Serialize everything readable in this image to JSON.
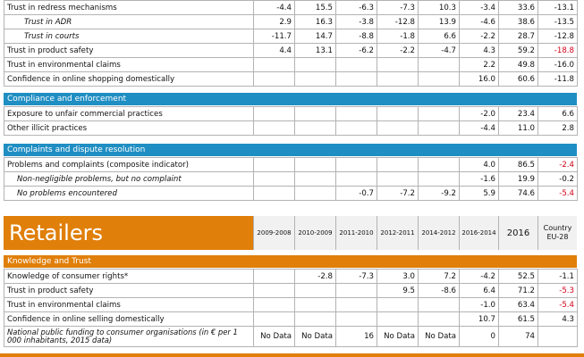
{
  "top_rows": [
    {
      "label": "Trust in redress mechanisms",
      "style": "plain",
      "v": [
        "-4.4",
        "15.5",
        "-6.3",
        "-7.3",
        "10.3",
        "-3.4",
        "33.6",
        "-13.1"
      ],
      "neg_last": false
    },
    {
      "label": "Trust in ADR",
      "style": "ind",
      "v": [
        "2.9",
        "16.3",
        "-3.8",
        "-12.8",
        "13.9",
        "-4.6",
        "38.6",
        "-13.5"
      ],
      "neg_last": false
    },
    {
      "label": "Trust in courts",
      "style": "ind",
      "v": [
        "-11.7",
        "14.7",
        "-8.8",
        "-1.8",
        "6.6",
        "-2.2",
        "28.7",
        "-12.8"
      ],
      "neg_last": false
    },
    {
      "label": "Trust in product safety",
      "style": "plain",
      "v": [
        "4.4",
        "13.1",
        "-6.2",
        "-2.2",
        "-4.7",
        "4.3",
        "59.2",
        "-18.8"
      ],
      "neg_last": true
    },
    {
      "label": "Trust in environmental claims",
      "style": "plain",
      "v": [
        "",
        "",
        "",
        "",
        "",
        "2.2",
        "49.8",
        "-16.0"
      ],
      "neg_last": false
    },
    {
      "label": "Confidence in online shopping domestically",
      "style": "plain",
      "v": [
        "",
        "",
        "",
        "",
        "",
        "16.0",
        "60.6",
        "-11.8"
      ],
      "neg_last": false
    }
  ],
  "compliance": {
    "title": "Compliance and enforcement",
    "rows": [
      {
        "label": "Exposure to unfair commercial practices",
        "style": "plain",
        "v": [
          "",
          "",
          "",
          "",
          "",
          "-2.0",
          "23.4",
          "6.6"
        ],
        "neg_last": false
      },
      {
        "label": "Other illicit practices",
        "style": "plain",
        "v": [
          "",
          "",
          "",
          "",
          "",
          "-4.4",
          "11.0",
          "2.8"
        ],
        "neg_last": false
      }
    ]
  },
  "complaints": {
    "title": "Complaints and dispute resolution",
    "rows": [
      {
        "label": "Problems and complaints (composite indicator)",
        "style": "plain",
        "v": [
          "",
          "",
          "",
          "",
          "",
          "4.0",
          "86.5",
          "-2.4"
        ],
        "neg_last": true
      },
      {
        "label": "Non-negligible problems, but no complaint",
        "style": "ital",
        "v": [
          "",
          "",
          "",
          "",
          "",
          "-1.6",
          "19.9",
          "-0.2"
        ],
        "neg_last": false
      },
      {
        "label": "No problems encountered",
        "style": "ital",
        "v": [
          "",
          "",
          "-0.7",
          "-7.2",
          "-9.2",
          "5.9",
          "74.6",
          "-5.4"
        ],
        "neg_last": true
      }
    ]
  },
  "retailers": {
    "title": "Retailers",
    "headers": [
      "2009-2008",
      "2010-2009",
      "2011-2010",
      "2012-2011",
      "2014-2012",
      "2016-2014",
      "2016",
      "Country EU-28"
    ]
  },
  "knowledge": {
    "title": "Knowledge and Trust",
    "rows": [
      {
        "label": "Knowledge of consumer rights*",
        "style": "plain",
        "v": [
          "",
          "-2.8",
          "-7.3",
          "3.0",
          "7.2",
          "-4.2",
          "52.5",
          "-1.1"
        ],
        "neg_last": false
      },
      {
        "label": "Trust in product safety",
        "style": "plain",
        "v": [
          "",
          "",
          "",
          "9.5",
          "-8.6",
          "6.4",
          "71.2",
          "-5.3"
        ],
        "neg_last": true
      },
      {
        "label": "Trust in environmental claims",
        "style": "plain",
        "v": [
          "",
          "",
          "",
          "",
          "",
          "-1.0",
          "63.4",
          "-5.4"
        ],
        "neg_last": true
      },
      {
        "label": "Confidence in online selling domestically",
        "style": "plain",
        "v": [
          "",
          "",
          "",
          "",
          "",
          "10.7",
          "61.5",
          "4.3"
        ],
        "neg_last": false
      }
    ],
    "funding": {
      "label": "National public funding to consumer organisations (in € per 1 000 inhabitants, 2015 data)",
      "v": [
        "No Data",
        "No Data",
        "16",
        "No Data",
        "No Data",
        "0",
        "74",
        ""
      ]
    }
  },
  "colors": {
    "blue": "#1f8ec3",
    "orange": "#e07f0a",
    "negative": "#d0021b"
  }
}
